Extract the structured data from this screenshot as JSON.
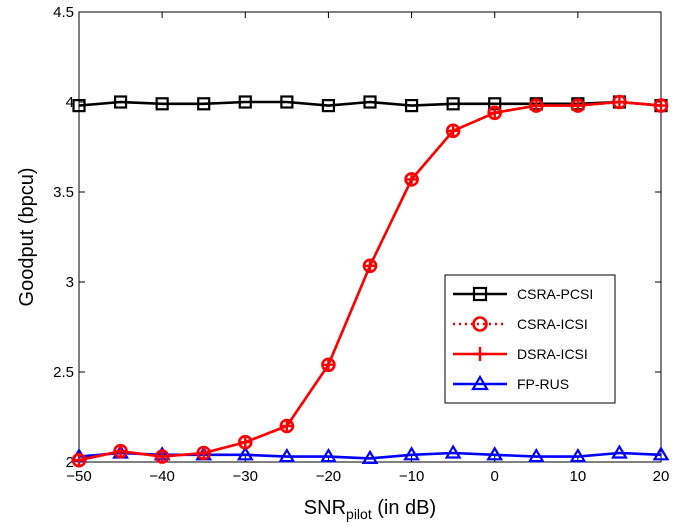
{
  "chart_data": {
    "type": "line",
    "xlabel": "SNR",
    "xlabel_sub": "pilot",
    "xlabel_suffix": " (in dB)",
    "ylabel": "Goodput (bpcu)",
    "xlim": [
      -50,
      20
    ],
    "ylim": [
      2,
      4.5
    ],
    "xticks": [
      -50,
      -40,
      -30,
      -20,
      -10,
      0,
      10,
      20
    ],
    "yticks": [
      2,
      2.5,
      3,
      3.5,
      4,
      4.5
    ],
    "xtick_labels": [
      "−50",
      "−40",
      "−30",
      "−20",
      "−10",
      "0",
      "10",
      "20"
    ],
    "ytick_labels": [
      "2",
      "2.5",
      "3",
      "3.5",
      "4",
      "4.5"
    ],
    "grid": false,
    "legend_position": "center-right",
    "x": [
      -50,
      -45,
      -40,
      -35,
      -30,
      -25,
      -20,
      -15,
      -10,
      -5,
      0,
      5,
      10,
      15,
      20
    ],
    "series": [
      {
        "name": "CSRA-PCSI",
        "color": "#000000",
        "marker": "square",
        "line": "solid",
        "values": [
          3.98,
          4.0,
          3.99,
          3.99,
          4.0,
          4.0,
          3.98,
          4.0,
          3.98,
          3.99,
          3.99,
          3.99,
          3.99,
          4.0,
          3.98
        ]
      },
      {
        "name": "CSRA-ICSI",
        "color": "#ff0000",
        "marker": "circle",
        "line": "dotted",
        "values": [
          2.01,
          2.06,
          2.03,
          2.05,
          2.11,
          2.2,
          2.54,
          3.09,
          3.57,
          3.84,
          3.94,
          3.98,
          3.98,
          4.0,
          3.98
        ]
      },
      {
        "name": "DSRA-ICSI",
        "color": "#ff0000",
        "marker": "plus",
        "line": "solid",
        "values": [
          2.01,
          2.06,
          2.03,
          2.05,
          2.11,
          2.2,
          2.54,
          3.09,
          3.57,
          3.84,
          3.94,
          3.98,
          3.98,
          4.0,
          3.98
        ]
      },
      {
        "name": "FP-RUS",
        "color": "#0000ff",
        "marker": "triangle",
        "line": "solid",
        "values": [
          2.03,
          2.05,
          2.04,
          2.04,
          2.04,
          2.03,
          2.03,
          2.02,
          2.04,
          2.05,
          2.04,
          2.03,
          2.03,
          2.05,
          2.04
        ]
      }
    ]
  }
}
